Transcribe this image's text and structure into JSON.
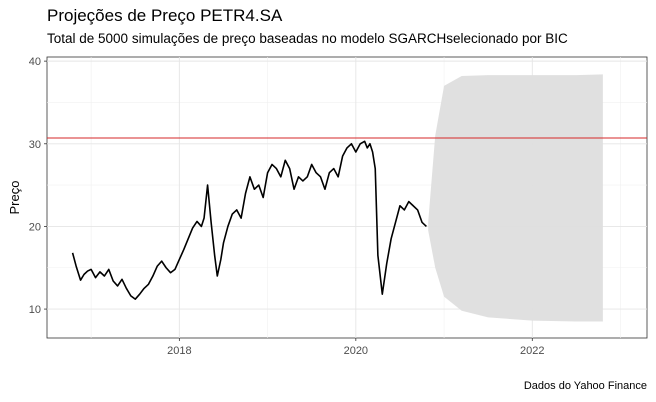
{
  "chart_data": {
    "type": "line",
    "title": "Projeções de Preço PETR4.SA",
    "subtitle": "Total de 5000 simulações de preço baseadas no modelo SGARCHselecionado por BIC",
    "caption": "Dados do Yahoo Finance",
    "xlabel": "",
    "ylabel": "Preço",
    "xlim": [
      2016.5,
      2023.3
    ],
    "ylim": [
      6.5,
      40.5
    ],
    "x_ticks": [
      2018,
      2020,
      2022
    ],
    "x_tick_labels": [
      "2018",
      "2020",
      "2022"
    ],
    "y_ticks": [
      10,
      20,
      30,
      40
    ],
    "y_tick_labels": [
      "10",
      "20",
      "30",
      "40"
    ],
    "grid": true,
    "legend": "none",
    "reference_line": {
      "y": 30.7,
      "color": "#d62728"
    },
    "simulation_band": {
      "count": 5000,
      "color": "#dedede",
      "x": [
        2020.82,
        2020.9,
        2021.0,
        2021.2,
        2021.5,
        2022.0,
        2022.5,
        2022.8
      ],
      "upper": [
        20.5,
        31.0,
        37.0,
        38.2,
        38.3,
        38.3,
        38.3,
        38.4
      ],
      "lower": [
        19.5,
        15.0,
        11.5,
        9.8,
        9.0,
        8.6,
        8.5,
        8.5
      ]
    },
    "series": [
      {
        "color": "#000000",
        "x": [
          2016.79,
          2016.83,
          2016.88,
          2016.92,
          2016.96,
          2017.0,
          2017.05,
          2017.1,
          2017.15,
          2017.2,
          2017.25,
          2017.3,
          2017.35,
          2017.4,
          2017.45,
          2017.5,
          2017.55,
          2017.6,
          2017.65,
          2017.7,
          2017.75,
          2017.8,
          2017.85,
          2017.9,
          2017.95,
          2018.0,
          2018.05,
          2018.1,
          2018.15,
          2018.2,
          2018.25,
          2018.28,
          2018.32,
          2018.36,
          2018.4,
          2018.43,
          2018.47,
          2018.5,
          2018.55,
          2018.6,
          2018.65,
          2018.7,
          2018.75,
          2018.8,
          2018.85,
          2018.9,
          2018.95,
          2019.0,
          2019.05,
          2019.1,
          2019.15,
          2019.2,
          2019.25,
          2019.3,
          2019.35,
          2019.4,
          2019.45,
          2019.5,
          2019.55,
          2019.6,
          2019.65,
          2019.7,
          2019.75,
          2019.8,
          2019.85,
          2019.9,
          2019.95,
          2020.0,
          2020.05,
          2020.1,
          2020.13,
          2020.16,
          2020.19,
          2020.22,
          2020.25,
          2020.3,
          2020.35,
          2020.4,
          2020.45,
          2020.5,
          2020.55,
          2020.6,
          2020.65,
          2020.7,
          2020.75,
          2020.8
        ],
        "y": [
          16.8,
          15.2,
          13.5,
          14.2,
          14.6,
          14.8,
          13.8,
          14.5,
          14.0,
          14.8,
          13.4,
          12.8,
          13.6,
          12.5,
          11.6,
          11.2,
          11.8,
          12.5,
          13.0,
          14.0,
          15.2,
          15.8,
          15.0,
          14.4,
          14.8,
          16.0,
          17.2,
          18.5,
          19.8,
          20.6,
          20.0,
          21.0,
          25.0,
          20.5,
          16.5,
          14.0,
          16.0,
          18.0,
          20.0,
          21.5,
          22.0,
          21.0,
          24.0,
          26.0,
          24.5,
          25.0,
          23.5,
          26.5,
          27.5,
          27.0,
          26.0,
          28.0,
          27.0,
          24.5,
          26.0,
          25.5,
          26.0,
          27.5,
          26.5,
          26.0,
          24.5,
          26.5,
          27.0,
          26.0,
          28.5,
          29.5,
          30.0,
          29.0,
          30.0,
          30.3,
          29.5,
          30.0,
          29.0,
          27.0,
          16.5,
          11.8,
          15.5,
          18.5,
          20.5,
          22.5,
          22.0,
          23.0,
          22.5,
          22.0,
          20.5,
          20.0
        ]
      }
    ]
  }
}
